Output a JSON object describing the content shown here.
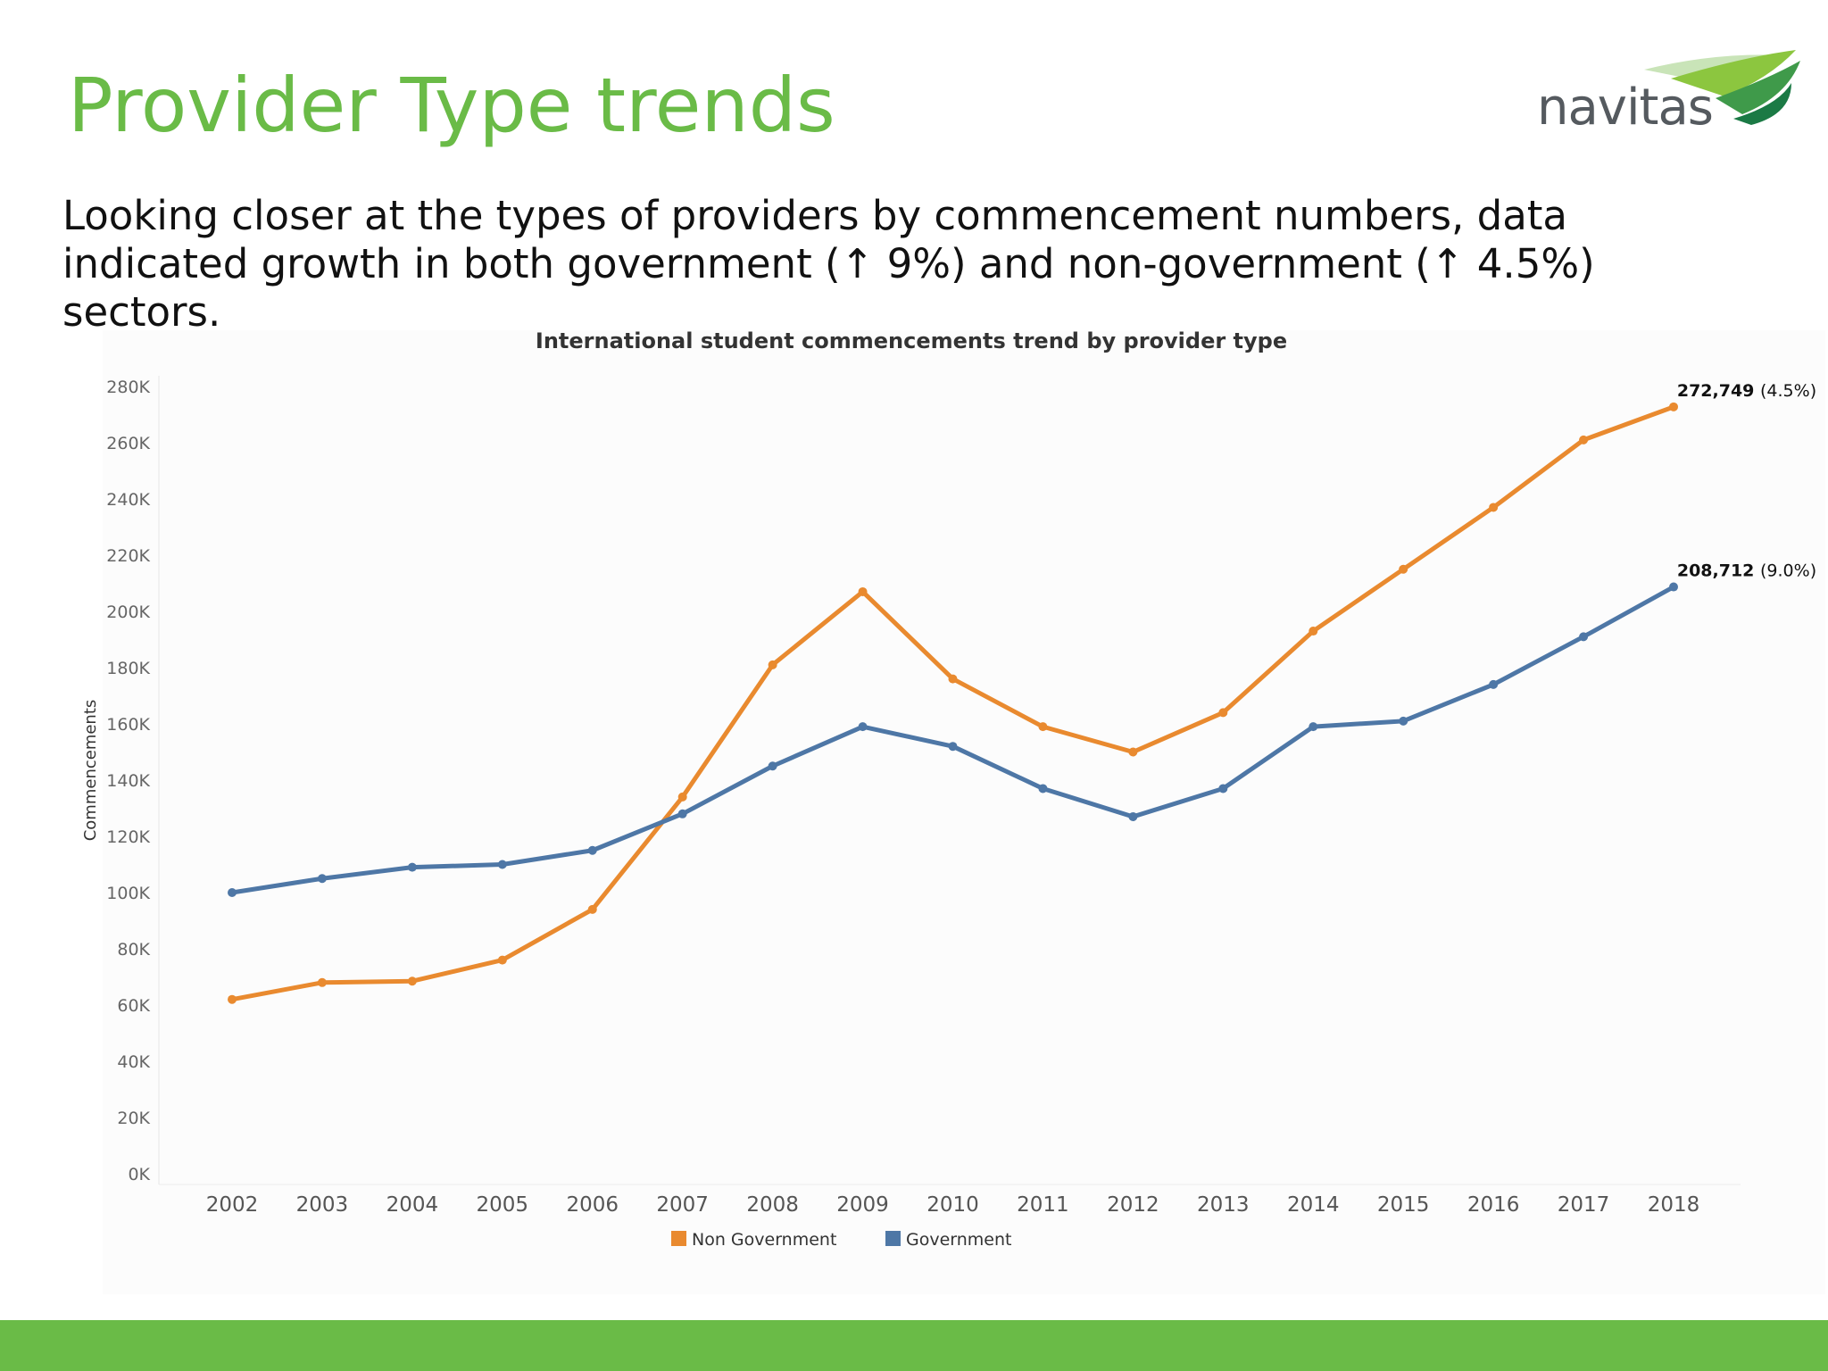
{
  "slide": {
    "title": "Provider Type trends",
    "description": "Looking closer at the types of providers by commencement numbers, data indicated growth in both government (↑ 9%) and non-government (↑ 4.5%) sectors.",
    "logo_text": "navitas",
    "colors": {
      "accent_green": "#6abb47"
    }
  },
  "chart_data": {
    "type": "line",
    "title": "International student commencements trend by provider type",
    "xlabel": "",
    "ylabel": "Commencements",
    "x": [
      2002,
      2003,
      2004,
      2005,
      2006,
      2007,
      2008,
      2009,
      2010,
      2011,
      2012,
      2013,
      2014,
      2015,
      2016,
      2017,
      2018
    ],
    "ylim": [
      0,
      280000
    ],
    "y_ticks": [
      "0K",
      "20K",
      "40K",
      "60K",
      "80K",
      "100K",
      "120K",
      "140K",
      "160K",
      "180K",
      "200K",
      "220K",
      "240K",
      "260K",
      "280K"
    ],
    "grid": false,
    "legend_position": "bottom",
    "series": [
      {
        "name": "Non Government",
        "color": "#e98a2f",
        "values": [
          62000,
          68000,
          68500,
          76000,
          94000,
          134000,
          181000,
          207000,
          176000,
          159000,
          150000,
          164000,
          193000,
          215000,
          237000,
          261000,
          272749
        ],
        "end_value": "272,749",
        "end_change": "(4.5%)"
      },
      {
        "name": "Government",
        "color": "#4e77a6",
        "values": [
          100000,
          105000,
          109000,
          110000,
          115000,
          128000,
          145000,
          159000,
          152000,
          137000,
          127000,
          137000,
          159000,
          161000,
          174000,
          191000,
          208712
        ],
        "end_value": "208,712",
        "end_change": "(9.0%)"
      }
    ]
  }
}
